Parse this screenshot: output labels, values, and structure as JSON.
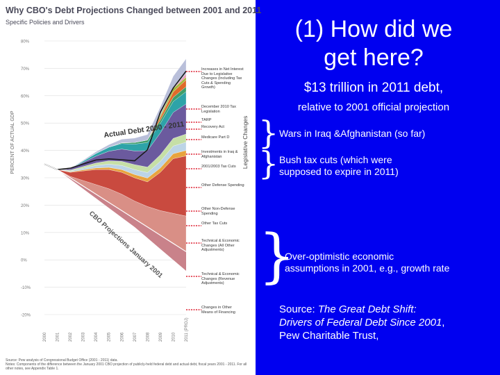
{
  "slide": {
    "title_line1": "(1) How did we",
    "title_line2": "get here?",
    "subtitle": "$13 trillion in 2011 debt,",
    "subtitle2": "relative to 2001 official projection",
    "notes": [
      {
        "line1": "Wars in Iraq &Afghanistan (so far)",
        "line2": ""
      },
      {
        "line1": "Bush tax cuts (which were",
        "line2": "supposed to expire in 2011)"
      },
      {
        "line1": "Over-optimistic economic",
        "line2": "assumptions in 2001, e.g., growth rate"
      }
    ],
    "source_prefix": "Source: ",
    "source_title_line1": "The Great Debt Shift:",
    "source_title_line2": "Drivers of Federal Debt Since 2001",
    "source_suffix": ",",
    "source_line3": "Pew Charitable Trust,"
  },
  "chart_data": {
    "type": "area",
    "title": "Why CBO's Debt Projections Changed between 2001 and 2011",
    "subtitle": "Specific Policies and Drivers",
    "ylabel": "PERCENT OF ACTUAL GDP",
    "legend_group_label": "Legislative Changes",
    "ylim": [
      -20,
      80
    ],
    "y_ticks": [
      "80%",
      "70%",
      "60%",
      "50%",
      "40%",
      "30%",
      "20%",
      "10%",
      "0%",
      "-10%",
      "-20%"
    ],
    "y_tick_values": [
      80,
      70,
      60,
      50,
      40,
      30,
      20,
      10,
      0,
      -10,
      -20
    ],
    "x_ticks": [
      "2000",
      "2001",
      "2002",
      "2003",
      "2004",
      "2005",
      "2006",
      "2007",
      "2008",
      "2009",
      "2010",
      "2011 (PROJ)"
    ],
    "x": [
      2000,
      2001,
      2002,
      2003,
      2004,
      2005,
      2006,
      2007,
      2008,
      2009,
      2010,
      2011
    ],
    "actual_debt_label": "Actual Debt 2000 - 2011",
    "cbo_label": "CBO Projections January 2001",
    "series": [
      {
        "name": "Changes in Other Means of Financing",
        "color": "#c9828a",
        "values": [
          0,
          0,
          -0.5,
          -1,
          -1.5,
          -2,
          -2.5,
          -3,
          -4,
          -5,
          -6,
          -7
        ]
      },
      {
        "name": "Technical & Economic Changes (Revenue Adjustments)",
        "color": "#d98f86",
        "values": [
          0,
          0,
          0.5,
          2,
          3.5,
          5,
          6,
          6.5,
          7.5,
          9,
          11,
          13
        ]
      },
      {
        "name": "Technical & Economic Changes (All Other Adjustments)",
        "color": "#c94a3f",
        "values": [
          0,
          0,
          1.5,
          3.5,
          5.5,
          7,
          8,
          8.5,
          9,
          14,
          20,
          22
        ]
      },
      {
        "name": "Other Tax Cuts",
        "color": "#e8a33e",
        "values": [
          0,
          0,
          0.2,
          0.4,
          0.6,
          0.8,
          1,
          1.2,
          1.4,
          1.6,
          1.8,
          2
        ]
      },
      {
        "name": "Other Non-Defense Spending",
        "color": "#bcd4e6",
        "values": [
          0,
          0,
          0.3,
          0.6,
          0.9,
          1.2,
          1.5,
          1.8,
          2,
          2.4,
          2.8,
          3
        ]
      },
      {
        "name": "Other Defense Spending",
        "color": "#c6dfa6",
        "values": [
          0,
          0,
          0.3,
          0.6,
          0.9,
          1.2,
          1.5,
          1.8,
          2,
          2.4,
          2.8,
          3
        ]
      },
      {
        "name": "2001/2003 Tax Cuts",
        "color": "#6b5a9e",
        "values": [
          0,
          0,
          0.5,
          1.5,
          2.5,
          3.5,
          4.5,
          5,
          6,
          8,
          9.5,
          11
        ]
      },
      {
        "name": "Investments in Iraq & Afghanistan",
        "color": "#2ea3a8",
        "values": [
          0,
          0,
          0,
          0.5,
          1,
          1.5,
          2,
          2.5,
          3,
          3.5,
          4,
          4.5
        ]
      },
      {
        "name": "Medicare Part D",
        "color": "#3f9e6a",
        "values": [
          0,
          0,
          0,
          0,
          0,
          0,
          0.3,
          0.6,
          0.9,
          1.2,
          1.5,
          1.8
        ]
      },
      {
        "name": "Recovery Act",
        "color": "#e06a2a",
        "values": [
          0,
          0,
          0,
          0,
          0,
          0,
          0,
          0,
          0,
          1,
          2,
          2.5
        ]
      },
      {
        "name": "TARP",
        "color": "#a4b83a",
        "values": [
          0,
          0,
          0,
          0,
          0,
          0,
          0,
          0,
          0,
          0.8,
          1.2,
          1
        ]
      },
      {
        "name": "December 2010 Tax Legislation",
        "color": "#e99ab5",
        "values": [
          0,
          0,
          0,
          0,
          0,
          0,
          0,
          0,
          0,
          0,
          0,
          1.2
        ]
      },
      {
        "name": "Increases in Net Interest Due to Legislative Changes (Including Tax Cuts & Spending Growth)",
        "color": "#b9bfda",
        "values": [
          0,
          0,
          0.1,
          0.3,
          0.6,
          0.9,
          1.3,
          1.6,
          2,
          3,
          4.5,
          5.5
        ]
      }
    ],
    "actual_debt": [
      35,
      33,
      33.5,
      35,
      36.5,
      36.9,
      36.6,
      36.2,
      40.2,
      54,
      62.8,
      69
    ],
    "cbo_projection": [
      35,
      33,
      30,
      27,
      24,
      21,
      18,
      15,
      12,
      9,
      6,
      3
    ],
    "footnote1": "Source: Pew analysis of Congressional Budget Office (2001 - 2011) data.",
    "footnote2": "Notes: Components of the difference between the January 2001 CBO projection of publicly-held federal debt and actual debt, fiscal years 2001 - 2011. For all other notes, see Appendix Table 1."
  }
}
